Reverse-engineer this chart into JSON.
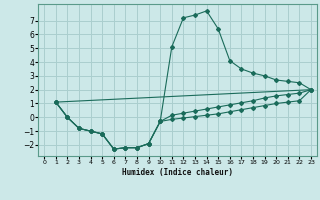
{
  "title": "",
  "xlabel": "Humidex (Indice chaleur)",
  "ylabel": "",
  "bg_color": "#cce8e8",
  "grid_color": "#aacece",
  "line_color": "#1a6b5a",
  "xlim": [
    -0.5,
    23.5
  ],
  "ylim": [
    -2.8,
    8.2
  ],
  "yticks": [
    -2,
    -1,
    0,
    1,
    2,
    3,
    4,
    5,
    6,
    7
  ],
  "xticks": [
    0,
    1,
    2,
    3,
    4,
    5,
    6,
    7,
    8,
    9,
    10,
    11,
    12,
    13,
    14,
    15,
    16,
    17,
    18,
    19,
    20,
    21,
    22,
    23
  ],
  "curve1_x": [
    1,
    2,
    3,
    4,
    5,
    6,
    7,
    8,
    9,
    10,
    11,
    12,
    13,
    14,
    15,
    16,
    17,
    18,
    19,
    20,
    21,
    22,
    23
  ],
  "curve1_y": [
    1.1,
    0.0,
    -0.8,
    -1.0,
    -1.2,
    -2.3,
    -2.2,
    -2.2,
    -1.9,
    -0.3,
    5.1,
    7.2,
    7.4,
    7.7,
    6.4,
    4.1,
    3.5,
    3.2,
    3.0,
    2.7,
    2.6,
    2.5,
    2.0
  ],
  "curve2_x": [
    1,
    2,
    3,
    4,
    5,
    6,
    7,
    8,
    9,
    10,
    11,
    12,
    13,
    14,
    15,
    16,
    17,
    18,
    19,
    20,
    21,
    22,
    23
  ],
  "curve2_y": [
    1.1,
    0.0,
    -0.8,
    -1.0,
    -1.2,
    -2.3,
    -2.2,
    -2.2,
    -1.9,
    -0.3,
    0.15,
    0.3,
    0.45,
    0.6,
    0.75,
    0.9,
    1.05,
    1.2,
    1.4,
    1.55,
    1.65,
    1.75,
    2.0
  ],
  "curve3_x": [
    1,
    2,
    3,
    4,
    5,
    6,
    7,
    8,
    9,
    10,
    11,
    12,
    13,
    14,
    15,
    16,
    17,
    18,
    19,
    20,
    21,
    22,
    23
  ],
  "curve3_y": [
    1.1,
    0.0,
    -0.8,
    -1.0,
    -1.2,
    -2.3,
    -2.2,
    -2.2,
    -1.9,
    -0.3,
    -0.15,
    -0.05,
    0.05,
    0.15,
    0.25,
    0.4,
    0.55,
    0.7,
    0.85,
    1.0,
    1.1,
    1.2,
    2.0
  ],
  "curve4_x": [
    1,
    23
  ],
  "curve4_y": [
    1.1,
    2.0
  ]
}
